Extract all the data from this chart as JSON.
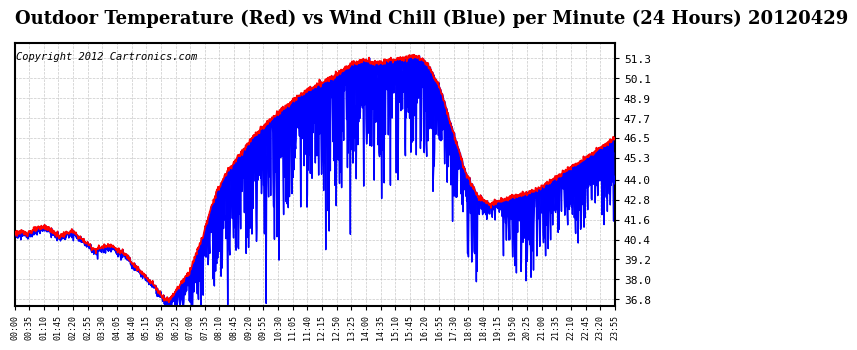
{
  "title": "Outdoor Temperature (Red) vs Wind Chill (Blue) per Minute (24 Hours) 20120429",
  "copyright": "Copyright 2012 Cartronics.com",
  "y_ticks": [
    36.8,
    38.0,
    39.2,
    40.4,
    41.6,
    42.8,
    44.0,
    45.3,
    46.5,
    47.7,
    48.9,
    50.1,
    51.3
  ],
  "ylim": [
    36.4,
    52.2
  ],
  "x_tick_labels": [
    "00:00",
    "00:35",
    "01:10",
    "01:45",
    "02:20",
    "02:55",
    "03:30",
    "04:05",
    "04:40",
    "05:15",
    "05:50",
    "06:25",
    "07:00",
    "07:35",
    "08:10",
    "08:45",
    "09:20",
    "09:55",
    "10:30",
    "11:05",
    "11:40",
    "12:15",
    "12:50",
    "13:25",
    "14:00",
    "14:35",
    "15:10",
    "15:45",
    "16:20",
    "16:55",
    "17:30",
    "18:05",
    "18:40",
    "19:15",
    "19:50",
    "20:25",
    "21:00",
    "21:35",
    "22:10",
    "22:45",
    "23:20",
    "23:55"
  ],
  "background_color": "#ffffff",
  "plot_bg_color": "#ffffff",
  "grid_color": "#bbbbbb",
  "red_color": "#ff0000",
  "blue_color": "#0000ff",
  "title_fontsize": 13,
  "copyright_fontsize": 7.5
}
